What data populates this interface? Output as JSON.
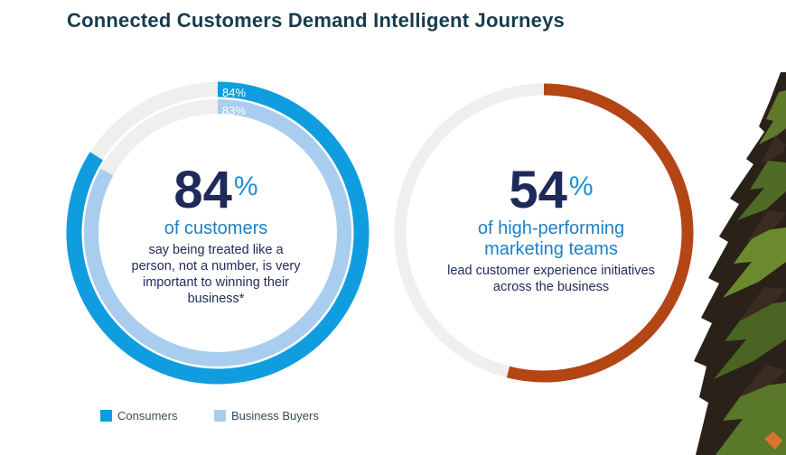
{
  "title": "Connected Customers Demand Intelligent Journeys",
  "colors": {
    "consumers": "#0f9ddf",
    "business_buyers": "#a9cdee",
    "marketing": "#b44515",
    "track": "#efefef"
  },
  "chart_data": [
    {
      "type": "pie",
      "subtype": "radial-progress",
      "series": [
        {
          "name": "Consumers",
          "value": 84,
          "label": "84%"
        },
        {
          "name": "Business Buyers",
          "value": 83,
          "label": "83%"
        }
      ],
      "headline_value": "84",
      "headline_unit": "%",
      "headline_text": "of customers",
      "detail_text": "say being treated like a person, not a number, is very important to winning their business*",
      "legend": [
        {
          "label": "Consumers"
        },
        {
          "label": "Business Buyers"
        }
      ],
      "legend_placement": "bottom-left"
    },
    {
      "type": "pie",
      "subtype": "radial-progress",
      "series": [
        {
          "name": "High-performing marketing teams",
          "value": 54
        }
      ],
      "headline_value": "54",
      "headline_unit": "%",
      "headline_text": "of high-performing marketing teams",
      "detail_text": "lead customer experience initiatives across the business"
    }
  ]
}
